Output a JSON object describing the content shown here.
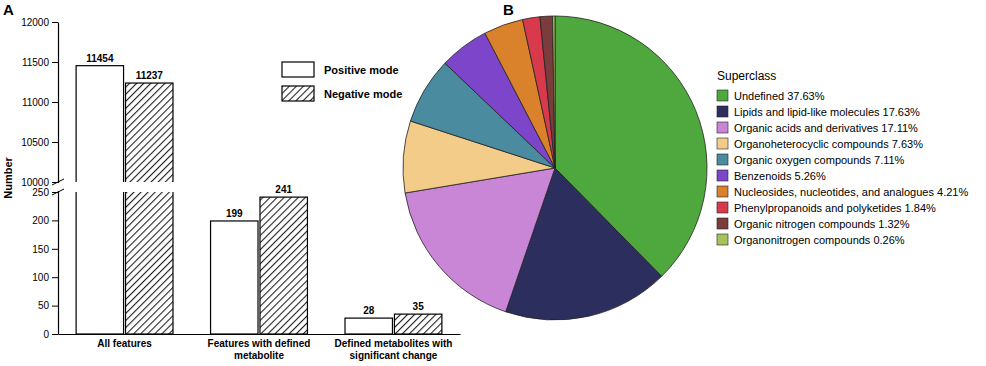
{
  "chart_data": [
    {
      "type": "bar",
      "title": "A",
      "y_label": "Number",
      "categories": [
        "All features",
        "Features with defined metabolite",
        "Defined metabolites with significant change"
      ],
      "series": [
        {
          "name": "Positive mode",
          "color": "#ffffff",
          "values": [
            11454,
            199,
            28
          ]
        },
        {
          "name": "Negative mode",
          "color": "#222222",
          "values": [
            11237,
            241,
            35
          ]
        }
      ],
      "ylim": [
        0,
        12000
      ],
      "yticks": [
        0,
        50,
        100,
        150,
        200,
        250,
        10000,
        10500,
        11000,
        11500,
        12000
      ],
      "data_labels": true,
      "legend": "top-right",
      "grid": false
    },
    {
      "type": "pie",
      "title": "B",
      "legend_title": "Superclass",
      "categories": [
        "Undefined 37.63%",
        "Lipids and lipid-like molecules 17.63%",
        "Organic acids and derivatives 17.11%",
        "Organoheterocyclic compounds 7.63%",
        "Organic oxygen compounds 7.11%",
        "Benzenoids 5.26%",
        "Nucleosides, nucleotides, and analogues 4.21%",
        "Phenylpropanoids and polyketides 1.84%",
        "Organic nitrogen compounds 1.32%",
        "Organonitrogen compounds 0.26%"
      ],
      "values": [
        37.63,
        17.63,
        17.11,
        7.63,
        7.11,
        5.26,
        4.21,
        1.84,
        1.32,
        0.26
      ],
      "colors": [
        "#4ea83d",
        "#2c2f5e",
        "#c986d6",
        "#f2cc88",
        "#4a8ba0",
        "#7d45c9",
        "#d9822b",
        "#d83a4c",
        "#7a3c3c",
        "#a6c25a"
      ],
      "legend": "right"
    }
  ]
}
